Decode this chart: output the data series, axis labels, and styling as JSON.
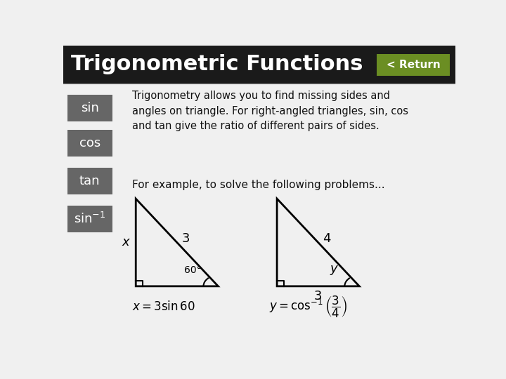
{
  "title": "Trigonometric Functions",
  "return_btn": "< Return",
  "title_bg": "#1a1a1a",
  "title_fg": "#ffffff",
  "return_bg": "#6b8e23",
  "return_fg": "#ffffff",
  "bg_color": "#f0f0f0",
  "sidebar_buttons": [
    "sin",
    "cos",
    "tan",
    "sin-1"
  ],
  "sidebar_bg": "#666666",
  "sidebar_fg": "#ffffff",
  "text1": "Trigonometry allows you to find missing sides and\nangles on triangle. For right-angled triangles, sin, cos\nand tan give the ratio of different pairs of sides.",
  "text2": "For example, to solve the following problems...",
  "tri1_hyp_label": "3",
  "tri1_vert_label": "x",
  "tri1_angle_label": "60°",
  "formula1": "$x = 3\\sin 60$",
  "tri2_hyp_label": "4",
  "tri2_bottom_label": "3",
  "tri2_angle_label": "y",
  "formula2": "$y = \\cos^{-1}\\left(\\dfrac{3}{4}\\right)$"
}
